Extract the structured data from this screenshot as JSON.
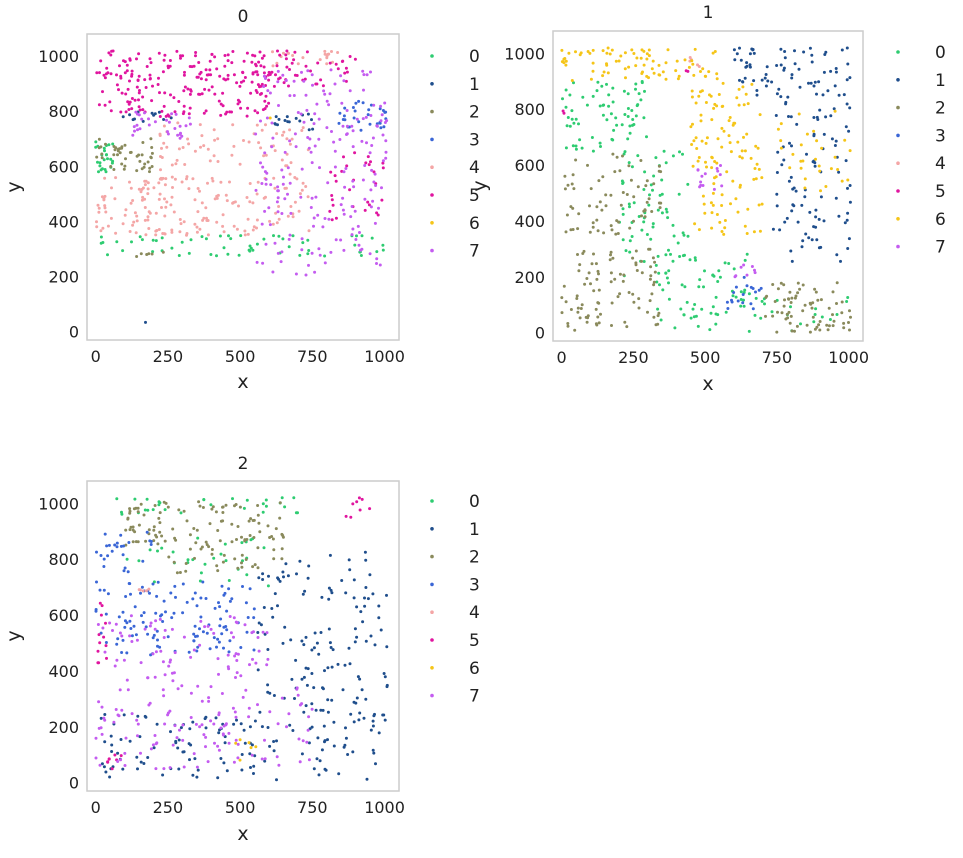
{
  "colors": {
    "0": "#2ecc71",
    "1": "#1f4e8c",
    "2": "#8a8a5c",
    "3": "#3a66d6",
    "4": "#f4a6a6",
    "5": "#e0159f",
    "6": "#f5c518",
    "7": "#c45cf0"
  },
  "chart_data": [
    {
      "type": "scatter",
      "title": "0",
      "xlabel": "x",
      "ylabel": "y",
      "xlim": [
        -30,
        1050
      ],
      "ylim": [
        -30,
        1080
      ],
      "xticks": [
        0,
        250,
        500,
        750,
        1000
      ],
      "yticks": [
        0,
        200,
        400,
        600,
        800,
        1000
      ],
      "legend_position": "right",
      "grid": false,
      "clusters": [
        {
          "name": "0",
          "regions": [
            [
              0,
              1000,
              270,
              350,
              60
            ],
            [
              0,
              60,
              570,
              710,
              25
            ]
          ]
        },
        {
          "name": "1",
          "regions": [
            [
              80,
              280,
              760,
              800,
              12
            ],
            [
              620,
              760,
              730,
              790,
              16
            ],
            [
              170,
              180,
              30,
              40,
              1
            ]
          ]
        },
        {
          "name": "2",
          "regions": [
            [
              0,
              200,
              580,
              700,
              45
            ],
            [
              130,
              250,
              270,
              290,
              6
            ]
          ]
        },
        {
          "name": "3",
          "regions": [
            [
              840,
              1010,
              730,
              840,
              30
            ]
          ]
        },
        {
          "name": "4",
          "regions": [
            [
              0,
              250,
              350,
              560,
              70
            ],
            [
              220,
              750,
              350,
              760,
              170
            ],
            [
              600,
              850,
              960,
              1020,
              20
            ]
          ]
        },
        {
          "name": "5",
          "regions": [
            [
              0,
              600,
              780,
              1020,
              210
            ],
            [
              550,
              900,
              880,
              1020,
              50
            ],
            [
              800,
              1000,
              400,
              650,
              30
            ]
          ]
        },
        {
          "name": "6",
          "regions": [
            [
              590,
              610,
              770,
              780,
              1
            ]
          ]
        },
        {
          "name": "7",
          "regions": [
            [
              550,
              1010,
              200,
              950,
              200
            ],
            [
              120,
              350,
              700,
              800,
              30
            ]
          ]
        }
      ]
    },
    {
      "type": "scatter",
      "title": "1",
      "xlabel": "x",
      "ylabel": "y",
      "xlim": [
        -30,
        1050
      ],
      "ylim": [
        -30,
        1080
      ],
      "xticks": [
        0,
        250,
        500,
        750,
        1000
      ],
      "yticks": [
        0,
        200,
        400,
        600,
        800,
        1000
      ],
      "legend_position": "right",
      "grid": false,
      "clusters": [
        {
          "name": "0",
          "regions": [
            [
              0,
              300,
              650,
              900,
              70
            ],
            [
              200,
              450,
              200,
              650,
              70
            ],
            [
              330,
              650,
              0,
              300,
              60
            ],
            [
              600,
              1000,
              0,
              150,
              25
            ]
          ]
        },
        {
          "name": "1",
          "regions": [
            [
              600,
              1010,
              850,
              1020,
              70
            ],
            [
              720,
              1010,
              250,
              850,
              90
            ]
          ]
        },
        {
          "name": "2",
          "regions": [
            [
              0,
              350,
              0,
              300,
              90
            ],
            [
              0,
              350,
              350,
              650,
              70
            ],
            [
              700,
              1010,
              0,
              180,
              70
            ]
          ]
        },
        {
          "name": "3",
          "regions": [
            [
              570,
              700,
              80,
              200,
              18
            ]
          ]
        },
        {
          "name": "4",
          "regions": [
            [
              400,
              480,
              900,
              1000,
              5
            ]
          ]
        },
        {
          "name": "5",
          "regions": [
            [
              0,
              20,
              780,
              800,
              2
            ],
            [
              420,
              450,
              930,
              960,
              2
            ]
          ]
        },
        {
          "name": "6",
          "regions": [
            [
              0,
              550,
              900,
              1020,
              80
            ],
            [
              450,
              700,
              350,
              900,
              110
            ],
            [
              750,
              1010,
              500,
              800,
              30
            ]
          ]
        },
        {
          "name": "7",
          "regions": [
            [
              470,
              560,
              500,
              600,
              14
            ],
            [
              600,
              680,
              200,
              260,
              8
            ]
          ]
        }
      ]
    },
    {
      "type": "scatter",
      "title": "2",
      "xlabel": "x",
      "ylabel": "y",
      "xlim": [
        -30,
        1050
      ],
      "ylim": [
        -30,
        1080
      ],
      "xticks": [
        0,
        250,
        500,
        750,
        1000
      ],
      "yticks": [
        0,
        200,
        400,
        600,
        800,
        1000
      ],
      "legend_position": "right",
      "grid": false,
      "clusters": [
        {
          "name": "0",
          "regions": [
            [
              50,
              700,
              960,
              1020,
              30
            ],
            [
              100,
              600,
              700,
              880,
              30
            ]
          ]
        },
        {
          "name": "1",
          "regions": [
            [
              550,
              1010,
              10,
              850,
              180
            ],
            [
              0,
              550,
              10,
              250,
              80
            ]
          ]
        },
        {
          "name": "2",
          "regions": [
            [
              100,
              250,
              850,
              1010,
              40
            ],
            [
              250,
              650,
              750,
              1010,
              90
            ]
          ]
        },
        {
          "name": "3",
          "regions": [
            [
              0,
              550,
              450,
              720,
              120
            ],
            [
              0,
              200,
              750,
              900,
              25
            ]
          ]
        },
        {
          "name": "4",
          "regions": [
            [
              150,
              200,
              680,
              720,
              5
            ]
          ]
        },
        {
          "name": "5",
          "regions": [
            [
              0,
              40,
              400,
              650,
              12
            ],
            [
              850,
              950,
              950,
              1020,
              8
            ],
            [
              0,
              100,
              30,
              100,
              8
            ]
          ]
        },
        {
          "name": "6",
          "regions": [
            [
              480,
              580,
              60,
              160,
              6
            ]
          ]
        },
        {
          "name": "7",
          "regions": [
            [
              0,
              600,
              50,
              600,
              180
            ],
            [
              600,
              750,
              60,
              350,
              20
            ]
          ]
        }
      ]
    }
  ]
}
